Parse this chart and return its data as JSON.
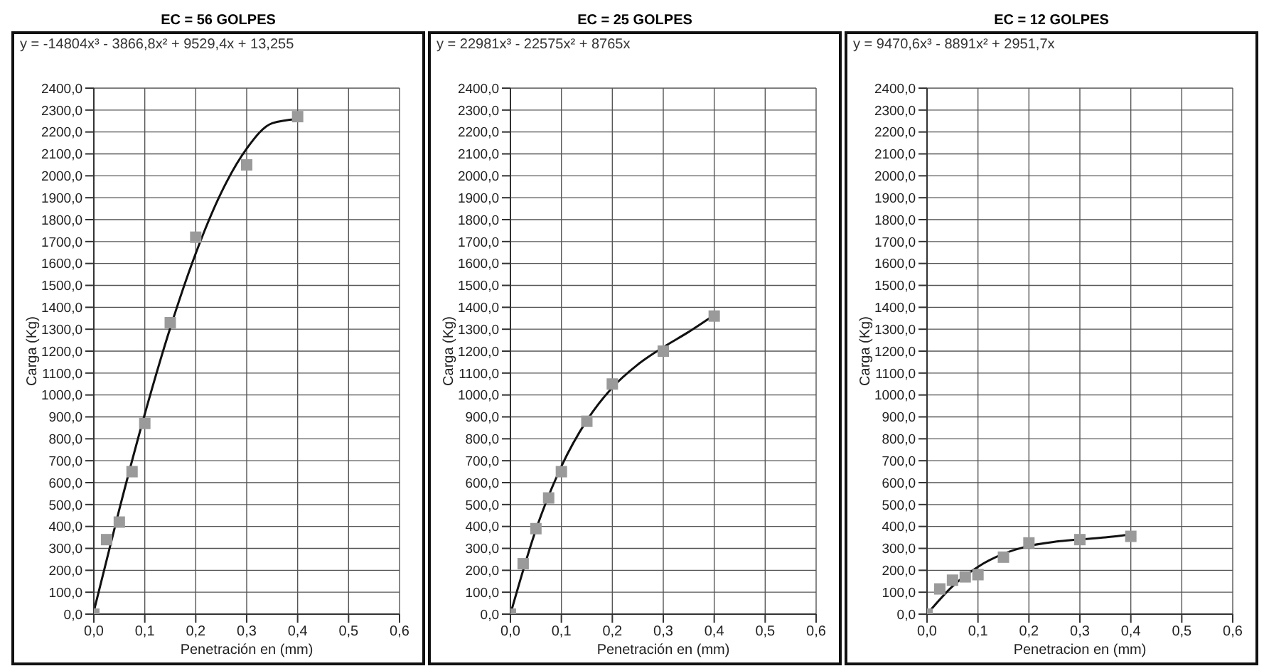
{
  "chart_data": [
    {
      "type": "scatter",
      "title": "EC = 56 GOLPES",
      "xlabel": "Penetración en (mm)",
      "ylabel": "Carga (Kg)",
      "annotations": [
        "y = -14804x³ - 3866,8x² + 9529,4x + 13,255"
      ],
      "grid": true,
      "legend": false,
      "xlim": [
        0,
        0.6
      ],
      "xticks": [
        {
          "value": 0,
          "label": "0,0"
        },
        {
          "value": 0.1,
          "label": "0,1"
        },
        {
          "value": 0.2,
          "label": "0,2"
        },
        {
          "value": 0.3,
          "label": "0,3"
        },
        {
          "value": 0.4,
          "label": "0,4"
        },
        {
          "value": 0.5,
          "label": "0,5"
        },
        {
          "value": 0.6,
          "label": "0,6"
        }
      ],
      "ylim": [
        0,
        2400
      ],
      "yticks": [
        {
          "value": 0,
          "label": "0,0"
        },
        {
          "value": 100,
          "label": "100,0"
        },
        {
          "value": 200,
          "label": "200,0"
        },
        {
          "value": 300,
          "label": "300,0"
        },
        {
          "value": 400,
          "label": "400,0"
        },
        {
          "value": 500,
          "label": "500,0"
        },
        {
          "value": 600,
          "label": "600,0"
        },
        {
          "value": 700,
          "label": "700,0"
        },
        {
          "value": 800,
          "label": "800,0"
        },
        {
          "value": 900,
          "label": "900,0"
        },
        {
          "value": 1000,
          "label": "1000,0"
        },
        {
          "value": 1100,
          "label": "1100,0"
        },
        {
          "value": 1200,
          "label": "1200,0"
        },
        {
          "value": 1300,
          "label": "1300,0"
        },
        {
          "value": 1400,
          "label": "1400,0"
        },
        {
          "value": 1500,
          "label": "1500,0"
        },
        {
          "value": 1600,
          "label": "1600,0"
        },
        {
          "value": 1700,
          "label": "1700,0"
        },
        {
          "value": 1800,
          "label": "1800,0"
        },
        {
          "value": 1900,
          "label": "1900,0"
        },
        {
          "value": 2000,
          "label": "2000,0"
        },
        {
          "value": 2100,
          "label": "2100,0"
        },
        {
          "value": 2200,
          "label": "2200,0"
        },
        {
          "value": 2300,
          "label": "2300,0"
        },
        {
          "value": 2400,
          "label": "2400,0"
        }
      ],
      "series": [
        {
          "marker": "square",
          "color": "#9a9a9a",
          "x": [
            0,
            0.025,
            0.05,
            0.075,
            0.1,
            0.15,
            0.2,
            0.3,
            0.4
          ],
          "values": [
            0,
            340,
            420,
            650,
            870,
            1330,
            1720,
            2050,
            2270
          ]
        },
        {
          "type": "line",
          "marker": "none",
          "color": "#111111",
          "x": [
            0,
            0.05,
            0.1,
            0.15,
            0.2,
            0.25,
            0.3,
            0.35,
            0.4
          ],
          "values": [
            13,
            478,
            913,
            1306,
            1646,
            1923,
            2124,
            2240,
            2259
          ]
        }
      ]
    },
    {
      "type": "scatter",
      "title": "EC = 25 GOLPES",
      "xlabel": "Penetración en (mm)",
      "ylabel": "Carga (Kg)",
      "annotations": [
        "y = 22981x³ - 22575x² + 8765x"
      ],
      "grid": true,
      "legend": false,
      "xlim": [
        0,
        0.6
      ],
      "xticks": [
        {
          "value": 0,
          "label": "0,0"
        },
        {
          "value": 0.1,
          "label": "0,1"
        },
        {
          "value": 0.2,
          "label": "0,2"
        },
        {
          "value": 0.3,
          "label": "0,3"
        },
        {
          "value": 0.4,
          "label": "0,4"
        },
        {
          "value": 0.5,
          "label": "0,5"
        },
        {
          "value": 0.6,
          "label": "0,6"
        }
      ],
      "ylim": [
        0,
        2400
      ],
      "yticks": [
        {
          "value": 0,
          "label": "0,0"
        },
        {
          "value": 100,
          "label": "100,0"
        },
        {
          "value": 200,
          "label": "200,0"
        },
        {
          "value": 300,
          "label": "300,0"
        },
        {
          "value": 400,
          "label": "400,0"
        },
        {
          "value": 500,
          "label": "500,0"
        },
        {
          "value": 600,
          "label": "600,0"
        },
        {
          "value": 700,
          "label": "700,0"
        },
        {
          "value": 800,
          "label": "800,0"
        },
        {
          "value": 900,
          "label": "900,0"
        },
        {
          "value": 1000,
          "label": "1000,0"
        },
        {
          "value": 1100,
          "label": "1100,0"
        },
        {
          "value": 1200,
          "label": "1200,0"
        },
        {
          "value": 1300,
          "label": "1300,0"
        },
        {
          "value": 1400,
          "label": "1400,0"
        },
        {
          "value": 1500,
          "label": "1500,0"
        },
        {
          "value": 1600,
          "label": "1600,0"
        },
        {
          "value": 1700,
          "label": "1700,0"
        },
        {
          "value": 1800,
          "label": "1800,0"
        },
        {
          "value": 1900,
          "label": "1900,0"
        },
        {
          "value": 2000,
          "label": "2000,0"
        },
        {
          "value": 2100,
          "label": "2100,0"
        },
        {
          "value": 2200,
          "label": "2200,0"
        },
        {
          "value": 2300,
          "label": "2300,0"
        },
        {
          "value": 2400,
          "label": "2400,0"
        }
      ],
      "series": [
        {
          "marker": "square",
          "color": "#9a9a9a",
          "x": [
            0,
            0.025,
            0.05,
            0.075,
            0.1,
            0.15,
            0.2,
            0.3,
            0.4
          ],
          "values": [
            0,
            230,
            390,
            530,
            650,
            880,
            1050,
            1200,
            1360
          ]
        },
        {
          "type": "line",
          "marker": "none",
          "color": "#111111",
          "x": [
            0,
            0.05,
            0.1,
            0.15,
            0.2,
            0.25,
            0.3,
            0.35,
            0.4
          ],
          "values": [
            0,
            385,
            674,
            884,
            1034,
            1139,
            1218,
            1288,
            1365
          ]
        }
      ]
    },
    {
      "type": "scatter",
      "title": "EC = 12 GOLPES",
      "xlabel": "Penetracion en (mm)",
      "ylabel": "Carga (Kg)",
      "annotations": [
        "y = 9470,6x³ - 8891x² + 2951,7x"
      ],
      "grid": true,
      "legend": false,
      "xlim": [
        0,
        0.6
      ],
      "xticks": [
        {
          "value": 0,
          "label": "0,0"
        },
        {
          "value": 0.1,
          "label": "0,1"
        },
        {
          "value": 0.2,
          "label": "0,2"
        },
        {
          "value": 0.3,
          "label": "0,3"
        },
        {
          "value": 0.4,
          "label": "0,4"
        },
        {
          "value": 0.5,
          "label": "0,5"
        },
        {
          "value": 0.6,
          "label": "0,6"
        }
      ],
      "ylim": [
        0,
        2400
      ],
      "yticks": [
        {
          "value": 0,
          "label": "0,0"
        },
        {
          "value": 100,
          "label": "100,0"
        },
        {
          "value": 200,
          "label": "200,0"
        },
        {
          "value": 300,
          "label": "300,0"
        },
        {
          "value": 400,
          "label": "400,0"
        },
        {
          "value": 500,
          "label": "500,0"
        },
        {
          "value": 600,
          "label": "600,0"
        },
        {
          "value": 700,
          "label": "700,0"
        },
        {
          "value": 800,
          "label": "800,0"
        },
        {
          "value": 900,
          "label": "900,0"
        },
        {
          "value": 1000,
          "label": "1000,0"
        },
        {
          "value": 1100,
          "label": "1100,0"
        },
        {
          "value": 1200,
          "label": "1200,0"
        },
        {
          "value": 1300,
          "label": "1300,0"
        },
        {
          "value": 1400,
          "label": "1400,0"
        },
        {
          "value": 1500,
          "label": "1500,0"
        },
        {
          "value": 1600,
          "label": "1600,0"
        },
        {
          "value": 1700,
          "label": "1700,0"
        },
        {
          "value": 1800,
          "label": "1800,0"
        },
        {
          "value": 1900,
          "label": "1900,0"
        },
        {
          "value": 2000,
          "label": "2000,0"
        },
        {
          "value": 2100,
          "label": "2100,0"
        },
        {
          "value": 2200,
          "label": "2200,0"
        },
        {
          "value": 2300,
          "label": "2300,0"
        },
        {
          "value": 2400,
          "label": "2400,0"
        }
      ],
      "series": [
        {
          "marker": "square",
          "color": "#9a9a9a",
          "x": [
            0,
            0.025,
            0.05,
            0.075,
            0.1,
            0.15,
            0.2,
            0.3,
            0.4
          ],
          "values": [
            0,
            115,
            155,
            170,
            180,
            260,
            325,
            340,
            355
          ]
        },
        {
          "type": "line",
          "marker": "none",
          "color": "#111111",
          "x": [
            0,
            0.05,
            0.1,
            0.15,
            0.2,
            0.25,
            0.3,
            0.35,
            0.4
          ],
          "values": [
            0,
            127,
            216,
            275,
            311,
            330,
            341,
            350,
            364
          ]
        }
      ]
    }
  ]
}
